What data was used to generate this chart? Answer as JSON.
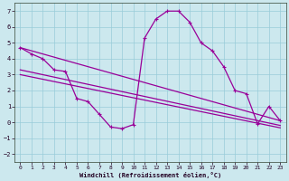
{
  "xlabel": "Windchill (Refroidissement éolien,°C)",
  "bg_color": "#cce8ee",
  "grid_color": "#99ccd9",
  "line_color": "#990099",
  "xlim": [
    -0.5,
    23.5
  ],
  "ylim": [
    -2.5,
    7.5
  ],
  "xticks": [
    0,
    1,
    2,
    3,
    4,
    5,
    6,
    7,
    8,
    9,
    10,
    11,
    12,
    13,
    14,
    15,
    16,
    17,
    18,
    19,
    20,
    21,
    22,
    23
  ],
  "yticks": [
    -2,
    -1,
    0,
    1,
    2,
    3,
    4,
    5,
    6,
    7
  ],
  "main_x": [
    0,
    1,
    2,
    3,
    4,
    5,
    6,
    7,
    8,
    9,
    10,
    11,
    12,
    13,
    14,
    15,
    16,
    17,
    18,
    19,
    20,
    21,
    22,
    23
  ],
  "main_y": [
    4.7,
    4.3,
    4.0,
    3.3,
    3.2,
    1.5,
    1.3,
    0.5,
    -0.3,
    -0.4,
    -0.15,
    5.3,
    6.5,
    7.0,
    7.0,
    6.3,
    5.0,
    4.5,
    3.5,
    2.0,
    1.8,
    -0.1,
    1.0,
    0.1
  ],
  "line1_x": [
    0,
    11
  ],
  "line1_y": [
    4.7,
    2.1
  ],
  "line2_x": [
    0,
    23
  ],
  "line2_y": [
    3.3,
    0.3
  ],
  "line3_x": [
    0,
    23
  ],
  "line3_y": [
    3.0,
    -0.3
  ],
  "lw": 0.9,
  "ms": 2.5
}
